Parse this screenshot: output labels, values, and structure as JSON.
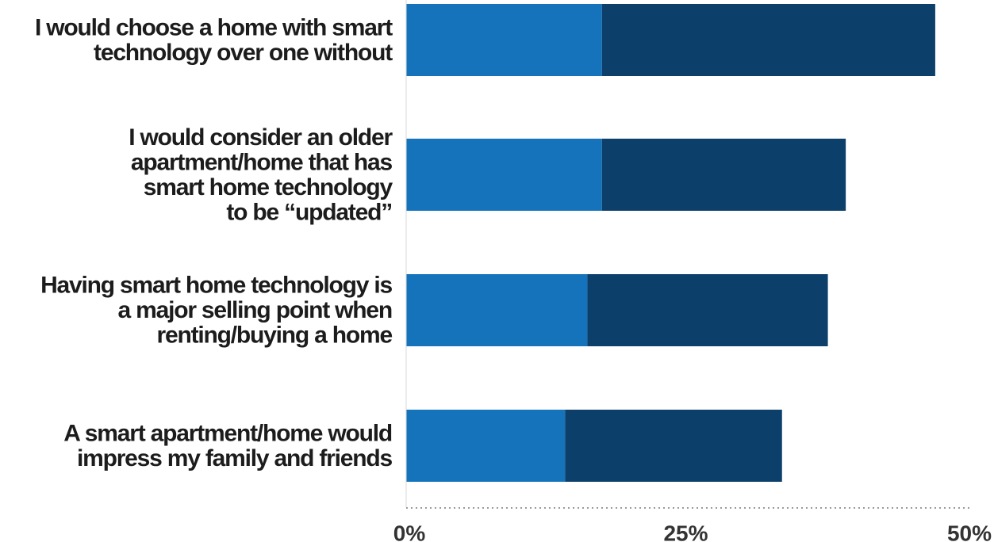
{
  "chart_data": {
    "type": "bar",
    "orientation": "horizontal",
    "stacked": true,
    "categories": [
      [
        "I would choose a home with smart",
        "technology over one without"
      ],
      [
        "I would consider an older",
        "apartment/home that has",
        "smart home technology",
        "to be “updated”"
      ],
      [
        "Having smart home technology is",
        "a major selling point when",
        "renting/buying a home"
      ],
      [
        "A smart apartment/home would",
        "impress my family and friends"
      ]
    ],
    "series": [
      {
        "values": [
          17.5,
          17.5,
          16.2,
          14.2
        ],
        "color": "#1473bb"
      },
      {
        "values": [
          29.8,
          21.8,
          21.5,
          19.4
        ],
        "color": "#0d3f6b"
      }
    ],
    "xlim": [
      0,
      50
    ],
    "xticks": [
      0,
      25,
      50
    ],
    "xtick_labels": [
      "0%",
      "25%",
      "50%"
    ],
    "grid": false,
    "legend": "none"
  }
}
